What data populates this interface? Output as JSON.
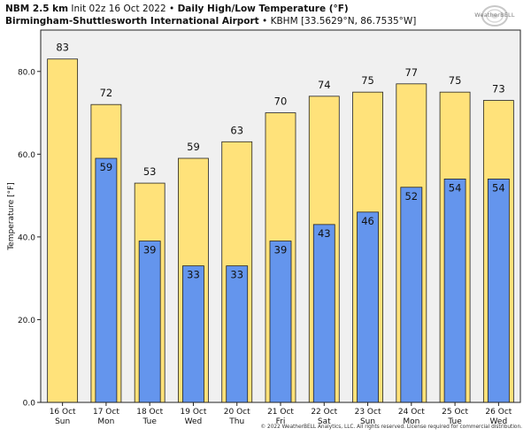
{
  "header": {
    "model": "NBM 2.5 km",
    "init": "Init 02z 16 Oct 2022",
    "bullet": "•",
    "title": "Daily High/Low Temperature (°F)",
    "location_name": "Birmingham-Shuttlesworth International Airport",
    "location_detail": "KBHM [33.5629°N, 86.7535°W]"
  },
  "logo": {
    "text": "WeatherBELL"
  },
  "copyright": "© 2022 WeatherBELL Analytics, LLC. All rights reserved. License required for commercial distribution.",
  "colors": {
    "high_bar": "#ffe27a",
    "low_bar": "#6495ed",
    "plot_bg": "#f0f0f0",
    "bar_edge": "#222222"
  },
  "chart_data": {
    "type": "bar",
    "ylabel": "Temperature [°F]",
    "ylim": [
      0,
      90
    ],
    "yticks": [
      0,
      20,
      40,
      60,
      80
    ],
    "ytick_labels": [
      "0.0",
      "20.0",
      "40.0",
      "60.0",
      "80.0"
    ],
    "categories": [
      [
        "16 Oct",
        "Sun"
      ],
      [
        "17 Oct",
        "Mon"
      ],
      [
        "18 Oct",
        "Tue"
      ],
      [
        "19 Oct",
        "Wed"
      ],
      [
        "20 Oct",
        "Thu"
      ],
      [
        "21 Oct",
        "Fri"
      ],
      [
        "22 Oct",
        "Sat"
      ],
      [
        "23 Oct",
        "Sun"
      ],
      [
        "24 Oct",
        "Mon"
      ],
      [
        "25 Oct",
        "Tue"
      ],
      [
        "26 Oct",
        "Wed"
      ]
    ],
    "series": [
      {
        "values": [
          83,
          72,
          53,
          59,
          63,
          70,
          74,
          75,
          77,
          75,
          73
        ],
        "labels": [
          "83",
          "72",
          "53",
          "59",
          "63",
          "70",
          "74",
          "75",
          "77",
          "75",
          "73"
        ]
      },
      {
        "values": [
          null,
          59,
          39,
          33,
          33,
          39,
          43,
          46,
          52,
          54,
          54
        ],
        "labels": [
          "",
          "59",
          "39",
          "33",
          "33",
          "39",
          "43",
          "46",
          "52",
          "54",
          "54"
        ]
      }
    ]
  }
}
